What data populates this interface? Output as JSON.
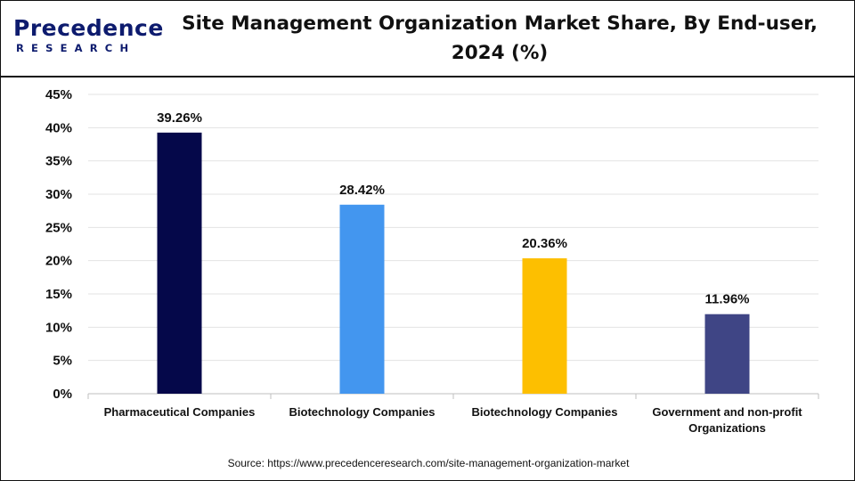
{
  "header": {
    "logo_main": "Precedence",
    "logo_sub": "RESEARCH",
    "title": "Site Management Organization Market Share, By End-user, 2024 (%)"
  },
  "footer": {
    "source": "Source: https://www.precedenceresearch.com/site-management-organization-market"
  },
  "chart_data": {
    "type": "bar",
    "title": "Site Management Organization Market Share, By End-user, 2024 (%)",
    "xlabel": "",
    "ylabel": "",
    "categories": [
      [
        "Pharmaceutical Companies"
      ],
      [
        "Biotechnology Companies"
      ],
      [
        "Biotechnology Companies"
      ],
      [
        "Government and non-profit",
        "Organizations"
      ]
    ],
    "values": [
      39.26,
      28.42,
      20.36,
      11.96
    ],
    "data_labels": [
      "39.26%",
      "28.42%",
      "20.36%",
      "11.96%"
    ],
    "colors": [
      "#05084a",
      "#4396ef",
      "#fdbf00",
      "#3f4585"
    ],
    "ylim": [
      0,
      45
    ],
    "yticks": [
      0,
      5,
      10,
      15,
      20,
      25,
      30,
      35,
      40,
      45
    ],
    "ytick_labels": [
      "0%",
      "5%",
      "10%",
      "15%",
      "20%",
      "25%",
      "30%",
      "35%",
      "40%",
      "45%"
    ],
    "grid": true,
    "legend": "none"
  }
}
